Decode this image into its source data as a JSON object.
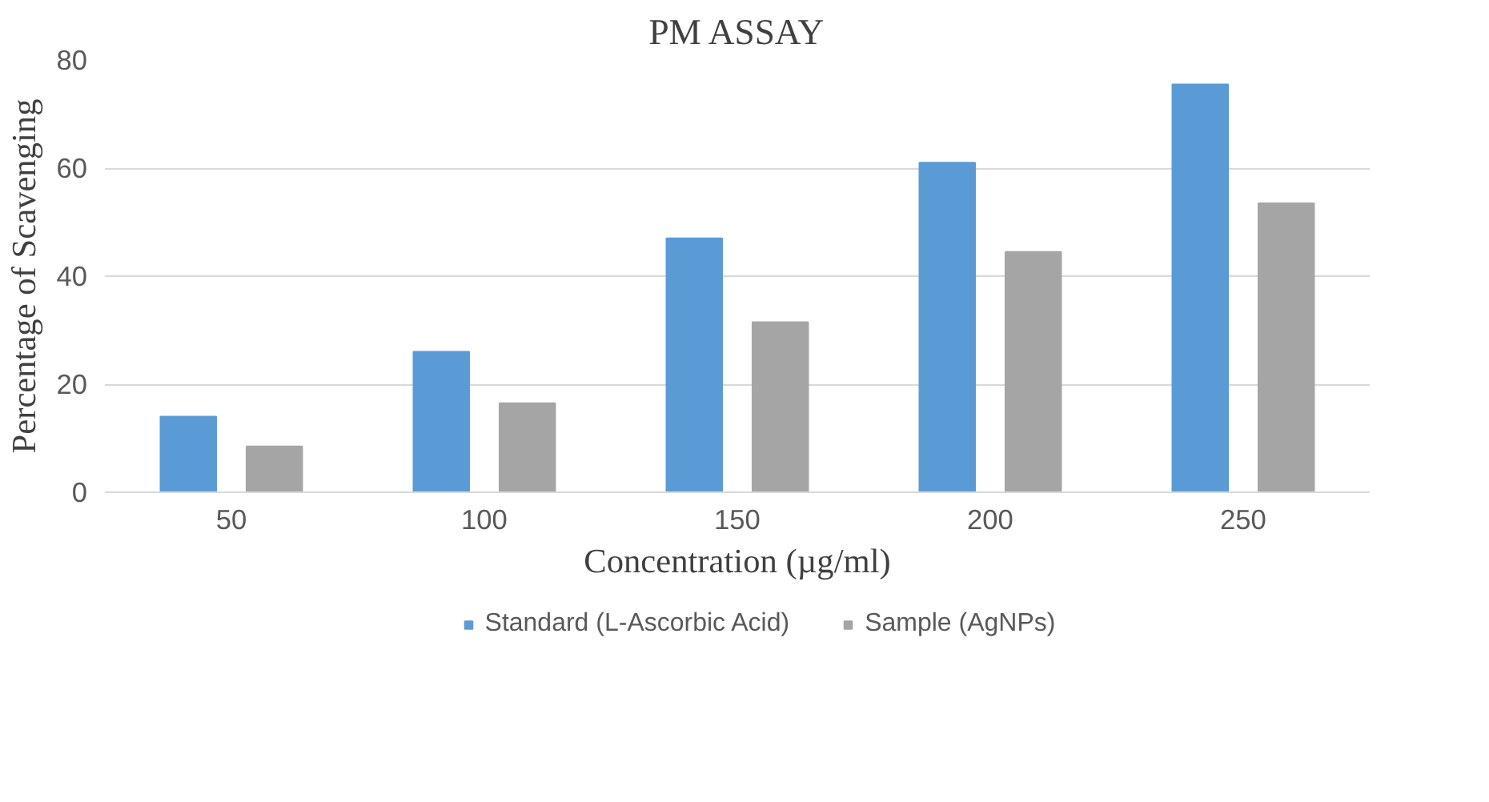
{
  "chart_data": {
    "type": "bar",
    "title": "PM ASSAY",
    "xlabel": "Concentration (µg/ml)",
    "ylabel": "Percentage of Scavenging",
    "categories": [
      "50",
      "100",
      "150",
      "200",
      "250"
    ],
    "series": [
      {
        "name": "Standard (L-Ascorbic Acid)",
        "color": "#5b9bd5",
        "values": [
          14,
          26,
          47,
          61,
          75.5
        ]
      },
      {
        "name": "Sample (AgNPs)",
        "color": "#a5a5a5",
        "values": [
          8.5,
          16.5,
          31.5,
          44.5,
          53.5
        ]
      }
    ],
    "ylim": [
      0,
      80
    ],
    "yticks": [
      0,
      20,
      40,
      60,
      80
    ],
    "grid": "y",
    "legend": "bottom"
  }
}
